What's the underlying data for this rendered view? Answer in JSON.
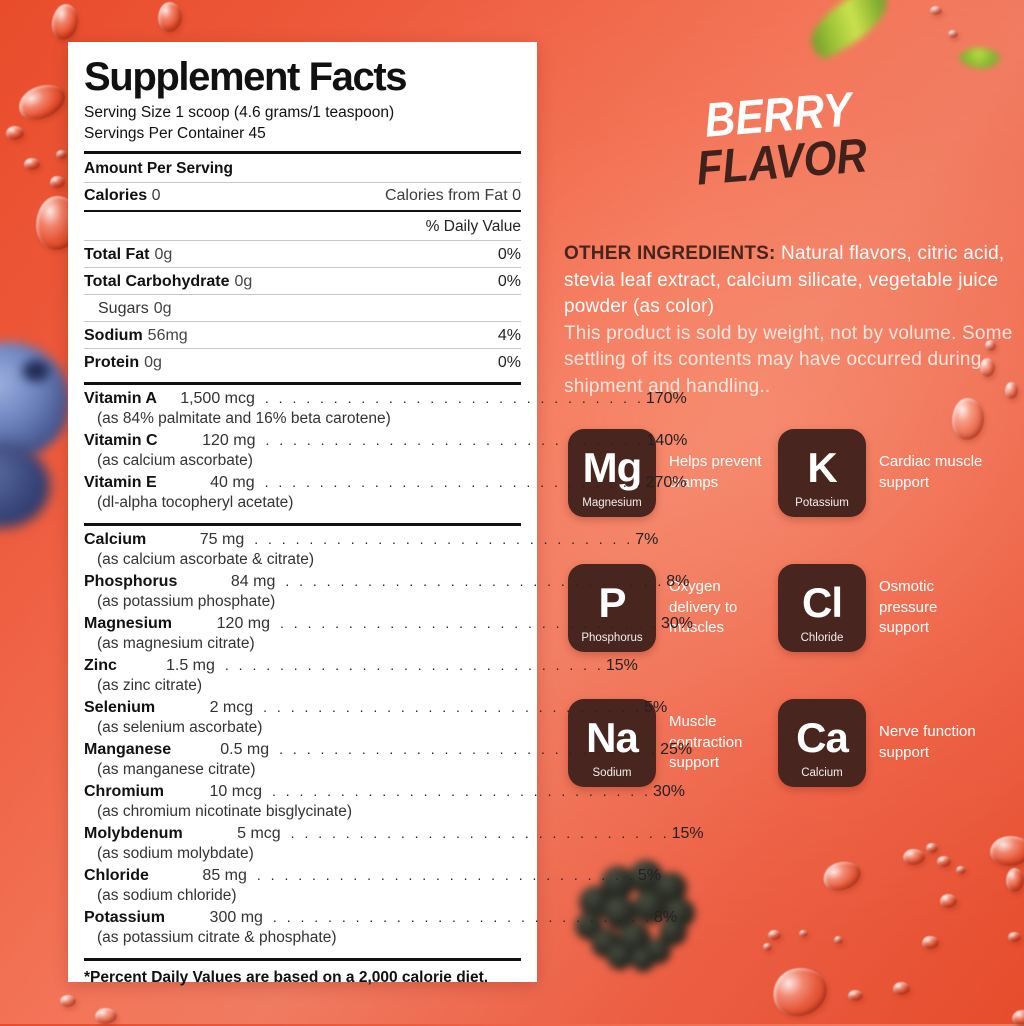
{
  "panel": {
    "title": "Supplement Facts",
    "serving_size": "Serving Size 1 scoop (4.6 grams/1 teaspoon)",
    "servings_per_container": "Servings Per Container 45",
    "amount_per_serving": "Amount Per Serving",
    "calories_label": "Calories",
    "calories_value": "0",
    "calories_from_fat": "Calories from Fat 0",
    "daily_value_header": "% Daily Value",
    "macros": [
      {
        "name": "Total Fat",
        "value": "0g",
        "dv": "0%",
        "indent": false
      },
      {
        "name": "Total Carbohydrate",
        "value": "0g",
        "dv": "0%",
        "indent": false
      },
      {
        "name": "Sugars",
        "value": "0g",
        "dv": "",
        "indent": true
      },
      {
        "name": "Sodium",
        "value": "56mg",
        "dv": "4%",
        "indent": false
      },
      {
        "name": "Protein",
        "value": "0g",
        "dv": "0%",
        "indent": false
      }
    ],
    "vitamins": [
      {
        "name": "Vitamin A",
        "amount": "1,500 mcg",
        "dv": "170%",
        "note": "(as 84% palmitate and 16% beta carotene)"
      },
      {
        "name": "Vitamin C",
        "amount": "120 mg",
        "dv": "140%",
        "note": "(as calcium ascorbate)"
      },
      {
        "name": "Vitamin E",
        "amount": "40 mg",
        "dv": "270%",
        "note": "(dl-alpha tocopheryl acetate)"
      }
    ],
    "minerals": [
      {
        "name": "Calcium",
        "amount": "75 mg",
        "dv": "7%",
        "note": "(as calcium ascorbate & citrate)"
      },
      {
        "name": "Phosphorus",
        "amount": "84 mg",
        "dv": "8%",
        "note": "(as potassium phosphate)"
      },
      {
        "name": "Magnesium",
        "amount": "120 mg",
        "dv": "30%",
        "note": "(as magnesium citrate)"
      },
      {
        "name": "Zinc",
        "amount": "1.5 mg",
        "dv": "15%",
        "note": "(as zinc citrate)"
      },
      {
        "name": "Selenium",
        "amount": "2 mcg",
        "dv": "5%",
        "note": "(as selenium ascorbate)"
      },
      {
        "name": "Manganese",
        "amount": "0.5 mg",
        "dv": "25%",
        "note": "(as manganese citrate)"
      },
      {
        "name": "Chromium",
        "amount": "10 mcg",
        "dv": "30%",
        "note": "(as chromium nicotinate bisglycinate)"
      },
      {
        "name": "Molybdenum",
        "amount": "5 mcg",
        "dv": "15%",
        "note": "(as sodium molybdate)"
      },
      {
        "name": "Chloride",
        "amount": "85 mg",
        "dv": "5%",
        "note": "(as sodium chloride)"
      },
      {
        "name": "Potassium",
        "amount": "300 mg",
        "dv": "8%",
        "note": "(as potassium citrate & phosphate)"
      }
    ],
    "footnote": "*Percent Daily Values are based on a 2,000 calorie diet."
  },
  "flavor": {
    "line1": "BERRY",
    "line2": "FLAVOR"
  },
  "other_ingredients": {
    "label": "OTHER INGREDIENTS:",
    "text": " Natural flavors, citric acid, stevia leaf extract, calcium silicate, vegetable juice powder (as color)",
    "note": "This product is sold by weight, not by volume. Some settling of its contents may have occurred during shipment and handling.."
  },
  "elements": [
    {
      "symbol": "Mg",
      "name": "Magnesium",
      "benefit": "Helps prevent cramps"
    },
    {
      "symbol": "K",
      "name": "Potassium",
      "benefit": "Cardiac muscle support"
    },
    {
      "symbol": "P",
      "name": "Phosphorus",
      "benefit": "Oxygen delivery to muscles"
    },
    {
      "symbol": "Cl",
      "name": "Chloride",
      "benefit": "Osmotic pressure support"
    },
    {
      "symbol": "Na",
      "name": "Sodium",
      "benefit": "Muscle contraction support"
    },
    {
      "symbol": "Ca",
      "name": "Calcium",
      "benefit": "Nerve function support"
    }
  ],
  "colors": {
    "background_accent": "#ee5b3d",
    "tile_brown": "#48261f",
    "flavor_brown": "#40221c",
    "label_white": "#ffffff",
    "facts_text": "#111111"
  }
}
